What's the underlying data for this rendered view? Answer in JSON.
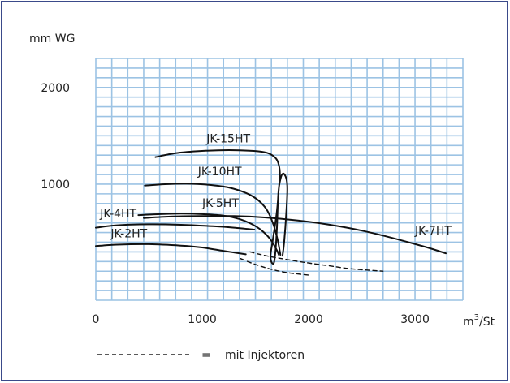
{
  "chart_data": {
    "type": "line",
    "title": "",
    "ylabel": "mm WG",
    "xlabel": "m³/St",
    "xlabel_base": "m",
    "xlabel_sup": "3",
    "xlabel_rest": "/St",
    "xlim": [
      0,
      3450
    ],
    "ylim": [
      -200,
      2300
    ],
    "x_ticks": [
      {
        "value": 0,
        "label": "0"
      },
      {
        "value": 1000,
        "label": "1000"
      },
      {
        "value": 2000,
        "label": "2000"
      },
      {
        "value": 3000,
        "label": "3000"
      }
    ],
    "y_ticks": [
      {
        "value": 1000,
        "label": "1000"
      },
      {
        "value": 2000,
        "label": "2000"
      }
    ],
    "grid": true,
    "grid_x_step": 150,
    "grid_y_step": 100,
    "series": [
      {
        "name": "JK-15HT",
        "style": "solid",
        "label_at": [
          1040,
          1430
        ],
        "points": [
          [
            560,
            1280
          ],
          [
            750,
            1320
          ],
          [
            950,
            1340
          ],
          [
            1150,
            1350
          ],
          [
            1350,
            1350
          ],
          [
            1520,
            1340
          ],
          [
            1620,
            1320
          ],
          [
            1690,
            1270
          ],
          [
            1720,
            1200
          ],
          [
            1730,
            1100
          ],
          [
            1720,
            950
          ],
          [
            1700,
            700
          ],
          [
            1660,
            400
          ],
          [
            1640,
            250
          ],
          [
            1660,
            180
          ],
          [
            1680,
            220
          ],
          [
            1700,
            500
          ],
          [
            1715,
            900
          ],
          [
            1735,
            1050
          ],
          [
            1760,
            1110
          ],
          [
            1790,
            1060
          ],
          [
            1800,
            950
          ],
          [
            1790,
            700
          ],
          [
            1770,
            400
          ],
          [
            1755,
            260
          ]
        ]
      },
      {
        "name": "JK-10HT",
        "style": "solid",
        "label_at": [
          960,
          1090
        ],
        "points": [
          [
            460,
            985
          ],
          [
            650,
            1000
          ],
          [
            850,
            1005
          ],
          [
            1050,
            995
          ],
          [
            1250,
            965
          ],
          [
            1420,
            905
          ],
          [
            1530,
            830
          ],
          [
            1610,
            730
          ],
          [
            1670,
            580
          ],
          [
            1710,
            420
          ],
          [
            1730,
            300
          ],
          [
            1735,
            270
          ]
        ]
      },
      {
        "name": "JK-5HT",
        "style": "solid",
        "label_at": [
          1000,
          765
        ],
        "points": [
          [
            400,
            680
          ],
          [
            600,
            690
          ],
          [
            800,
            695
          ],
          [
            1000,
            690
          ],
          [
            1200,
            675
          ],
          [
            1350,
            640
          ],
          [
            1460,
            590
          ],
          [
            1560,
            520
          ],
          [
            1640,
            430
          ],
          [
            1700,
            320
          ],
          [
            1720,
            270
          ]
        ]
      },
      {
        "name": "JK-4HT",
        "style": "solid",
        "label_at": [
          40,
          655
        ],
        "points": [
          [
            0,
            550
          ],
          [
            200,
            575
          ],
          [
            500,
            585
          ],
          [
            800,
            580
          ],
          [
            1100,
            565
          ],
          [
            1300,
            550
          ],
          [
            1490,
            530
          ]
        ]
      },
      {
        "name": "JK-7HT",
        "style": "solid",
        "label_at": [
          3000,
          480
        ],
        "points": [
          [
            450,
            650
          ],
          [
            700,
            665
          ],
          [
            1000,
            670
          ],
          [
            1300,
            670
          ],
          [
            1600,
            655
          ],
          [
            1900,
            625
          ],
          [
            2200,
            580
          ],
          [
            2500,
            520
          ],
          [
            2800,
            440
          ],
          [
            3100,
            350
          ],
          [
            3290,
            285
          ]
        ]
      },
      {
        "name": "JK-2HT",
        "style": "solid",
        "label_at": [
          140,
          450
        ],
        "points": [
          [
            0,
            360
          ],
          [
            200,
            375
          ],
          [
            500,
            380
          ],
          [
            800,
            365
          ],
          [
            1000,
            345
          ],
          [
            1200,
            310
          ],
          [
            1410,
            275
          ]
        ]
      },
      {
        "name": "",
        "style": "dashed",
        "points": [
          [
            1450,
            300
          ],
          [
            1600,
            260
          ],
          [
            1800,
            220
          ],
          [
            2000,
            185
          ],
          [
            2200,
            155
          ],
          [
            2400,
            125
          ],
          [
            2700,
            100
          ]
        ]
      },
      {
        "name": "",
        "style": "dashed",
        "points": [
          [
            1360,
            230
          ],
          [
            1500,
            170
          ],
          [
            1650,
            120
          ],
          [
            1800,
            85
          ],
          [
            2000,
            60
          ]
        ]
      }
    ],
    "legend": {
      "sample_style": "dashed",
      "equals": "=",
      "text": "mit Injektoren"
    }
  }
}
